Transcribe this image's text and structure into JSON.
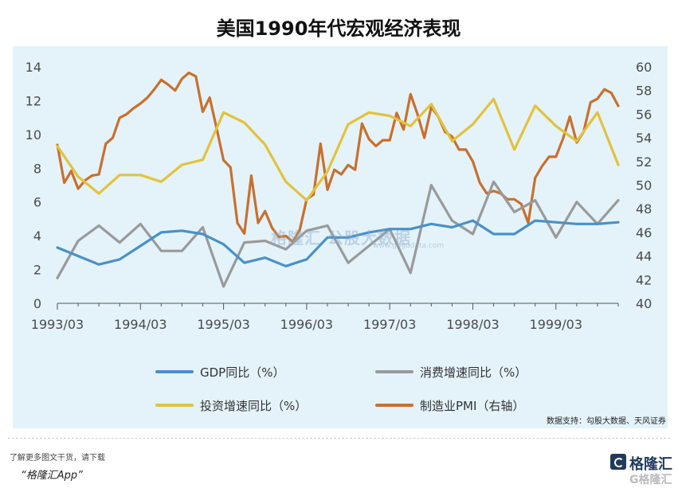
{
  "chart_data": {
    "type": "line",
    "title": "美国1990年代宏观经济表现",
    "xlabel": "",
    "ylabel": "",
    "x_tick_labels": [
      "1993/03",
      "1994/03",
      "1995/03",
      "1996/03",
      "1997/03",
      "1998/03",
      "1999/03"
    ],
    "x_start": "1993/03",
    "x_end": "1999/12",
    "ylim_left": [
      0,
      14
    ],
    "yticks_left": [
      0,
      2,
      4,
      6,
      8,
      10,
      12,
      14
    ],
    "ylim_right": [
      40,
      60
    ],
    "yticks_right": [
      40,
      42,
      44,
      46,
      48,
      50,
      52,
      54,
      56,
      58,
      60
    ],
    "grid": false,
    "legend_position": "bottom",
    "series": [
      {
        "name": "GDP同比（%）",
        "axis": "left",
        "color": "#4a90c8",
        "x": [
          "1993/03",
          "1993/06",
          "1993/09",
          "1993/12",
          "1994/03",
          "1994/06",
          "1994/09",
          "1994/12",
          "1995/03",
          "1995/06",
          "1995/09",
          "1995/12",
          "1996/03",
          "1996/06",
          "1996/09",
          "1996/12",
          "1997/03",
          "1997/06",
          "1997/09",
          "1997/12",
          "1998/03",
          "1998/06",
          "1998/09",
          "1998/12",
          "1999/03",
          "1999/06",
          "1999/09",
          "1999/12"
        ],
        "values": [
          3.3,
          2.8,
          2.3,
          2.6,
          3.4,
          4.2,
          4.3,
          4.1,
          3.5,
          2.4,
          2.7,
          2.2,
          2.6,
          3.9,
          3.9,
          4.2,
          4.4,
          4.4,
          4.7,
          4.5,
          4.9,
          4.1,
          4.1,
          4.9,
          4.8,
          4.7,
          4.7,
          4.8
        ]
      },
      {
        "name": "消费增速同比（%）",
        "axis": "left",
        "color": "#9a9a9a",
        "x": [
          "1993/03",
          "1993/06",
          "1993/09",
          "1993/12",
          "1994/03",
          "1994/06",
          "1994/09",
          "1994/12",
          "1995/03",
          "1995/06",
          "1995/09",
          "1995/12",
          "1996/03",
          "1996/06",
          "1996/09",
          "1996/12",
          "1997/03",
          "1997/06",
          "1997/09",
          "1997/12",
          "1998/03",
          "1998/06",
          "1998/09",
          "1998/12",
          "1999/03",
          "1999/06",
          "1999/09",
          "1999/12"
        ],
        "values": [
          1.5,
          3.7,
          4.6,
          3.6,
          4.7,
          3.1,
          3.1,
          4.5,
          1.0,
          3.6,
          3.7,
          3.2,
          4.3,
          4.6,
          2.4,
          3.4,
          4.4,
          1.8,
          7.0,
          4.9,
          4.1,
          7.2,
          5.4,
          6.1,
          3.9,
          6.0,
          4.7,
          6.1
        ]
      },
      {
        "name": "投资增速同比（%）",
        "axis": "left",
        "color": "#e2c23e",
        "x": [
          "1993/03",
          "1993/06",
          "1993/09",
          "1993/12",
          "1994/03",
          "1994/06",
          "1994/09",
          "1994/12",
          "1995/03",
          "1995/06",
          "1995/09",
          "1995/12",
          "1996/03",
          "1996/06",
          "1996/09",
          "1996/12",
          "1997/03",
          "1997/06",
          "1997/09",
          "1997/12",
          "1998/03",
          "1998/06",
          "1998/09",
          "1998/12",
          "1999/03",
          "1999/06",
          "1999/09",
          "1999/12"
        ],
        "values": [
          9.3,
          7.5,
          6.5,
          7.6,
          7.6,
          7.2,
          8.2,
          8.5,
          11.3,
          10.7,
          9.4,
          7.2,
          6.1,
          7.8,
          10.6,
          11.3,
          11.1,
          10.5,
          11.8,
          9.6,
          10.6,
          12.1,
          9.1,
          11.7,
          10.5,
          9.6,
          11.3,
          8.2
        ]
      },
      {
        "name": "制造业PMI（右轴）",
        "axis": "right",
        "color": "#c8702e",
        "x": [
          "1993/03",
          "1993/04",
          "1993/05",
          "1993/06",
          "1993/07",
          "1993/08",
          "1993/09",
          "1993/10",
          "1993/11",
          "1993/12",
          "1994/01",
          "1994/02",
          "1994/03",
          "1994/04",
          "1994/05",
          "1994/06",
          "1994/07",
          "1994/08",
          "1994/09",
          "1994/10",
          "1994/11",
          "1994/12",
          "1995/01",
          "1995/02",
          "1995/03",
          "1995/04",
          "1995/05",
          "1995/06",
          "1995/07",
          "1995/08",
          "1995/09",
          "1995/10",
          "1995/11",
          "1995/12",
          "1996/01",
          "1996/02",
          "1996/03",
          "1996/04",
          "1996/05",
          "1996/06",
          "1996/07",
          "1996/08",
          "1996/09",
          "1996/10",
          "1996/11",
          "1996/12",
          "1997/01",
          "1997/02",
          "1997/03",
          "1997/04",
          "1997/05",
          "1997/06",
          "1997/07",
          "1997/08",
          "1997/09",
          "1997/10",
          "1997/11",
          "1997/12",
          "1998/01",
          "1998/02",
          "1998/03",
          "1998/04",
          "1998/05",
          "1998/06",
          "1998/07",
          "1998/08",
          "1998/09",
          "1998/10",
          "1998/11",
          "1998/12",
          "1999/01",
          "1999/02",
          "1999/03",
          "1999/04",
          "1999/05",
          "1999/06",
          "1999/07",
          "1999/08",
          "1999/09",
          "1999/10",
          "1999/11",
          "1999/12"
        ],
        "values": [
          53.4,
          50.2,
          51.2,
          49.7,
          50.4,
          50.8,
          50.9,
          53.5,
          54.0,
          55.7,
          56.0,
          56.5,
          56.9,
          57.4,
          58.1,
          58.9,
          58.5,
          58.0,
          59.0,
          59.5,
          59.2,
          56.2,
          57.4,
          54.8,
          52.1,
          51.5,
          46.8,
          45.9,
          50.8,
          46.8,
          47.8,
          46.4,
          45.6,
          45.7,
          45.2,
          46.2,
          48.8,
          49.2,
          53.5,
          49.6,
          51.3,
          50.9,
          51.7,
          51.3,
          55.2,
          53.9,
          53.3,
          53.8,
          53.8,
          56.1,
          54.7,
          57.7,
          56.0,
          54.0,
          56.6,
          55.8,
          54.5,
          54.1,
          53.0,
          53.0,
          52.0,
          50.2,
          49.3,
          49.5,
          49.3,
          48.8,
          48.8,
          48.4,
          46.8,
          50.6,
          51.6,
          52.4,
          52.4,
          53.9,
          55.8,
          53.6,
          54.5,
          57.0,
          57.3,
          58.1,
          57.8,
          56.7
        ]
      }
    ],
    "source_note": "数据支持：勾股大数据、天风证券"
  },
  "watermark": {
    "text": "格隆汇  公股大数据",
    "sub": "www.gogudata.com"
  },
  "footer": {
    "note": "了解更多图文干货，请下载",
    "app": "“格隆汇App”"
  },
  "brand": {
    "name": "格隆汇",
    "sub": "G格隆汇"
  },
  "colors": {
    "gdp": "#4a90c8",
    "consumption": "#9a9a9a",
    "investment": "#e2c23e",
    "pmi": "#c8702e",
    "brand": "#1f3b5c"
  }
}
